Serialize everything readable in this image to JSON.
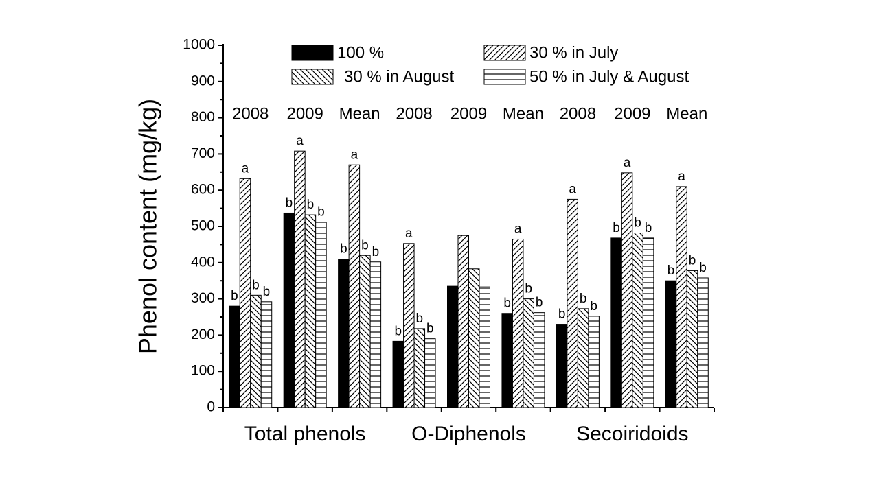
{
  "chart_data": {
    "type": "bar",
    "ylabel": "Phenol content (mg/kg)",
    "categories": [
      "2008",
      "2009",
      "Mean",
      "2008",
      "2009",
      "Mean",
      "2008",
      "2009",
      "Mean"
    ],
    "supergroups": [
      "Total phenols",
      "O-Diphenols",
      "Secoiridoids"
    ],
    "ylim": [
      0,
      1000
    ],
    "yticks": [
      0,
      100,
      200,
      300,
      400,
      500,
      600,
      700,
      800,
      900,
      1000
    ],
    "series": [
      {
        "name": "100 %",
        "color": "#000000",
        "pattern": "solid",
        "values": [
          280,
          537,
          410,
          183,
          335,
          260,
          230,
          468,
          350
        ],
        "letters": [
          "b",
          "b",
          "b",
          "b",
          null,
          "b",
          "b",
          "b",
          "b"
        ]
      },
      {
        "name": "30 % in July",
        "color": "#000000",
        "pattern": "diagonal",
        "values": [
          632,
          708,
          670,
          453,
          475,
          465,
          575,
          648,
          610
        ],
        "letters": [
          "a",
          "a",
          "a",
          "a",
          null,
          "a",
          "a",
          "a",
          "a"
        ]
      },
      {
        "name": "30 % in August",
        "color": "#000000",
        "pattern": "backdiagonal",
        "values": [
          310,
          532,
          420,
          218,
          383,
          300,
          273,
          482,
          378
        ],
        "letters": [
          "b",
          "b",
          "b",
          "b",
          null,
          "b",
          "b",
          "b",
          "b"
        ]
      },
      {
        "name": "50 % in July & August",
        "color": "#000000",
        "pattern": "horizontal",
        "values": [
          292,
          512,
          402,
          190,
          333,
          262,
          252,
          468,
          358
        ],
        "letters": [
          "b",
          "b",
          "b",
          "b",
          null,
          "b",
          "b",
          "b",
          "b"
        ]
      }
    ]
  }
}
